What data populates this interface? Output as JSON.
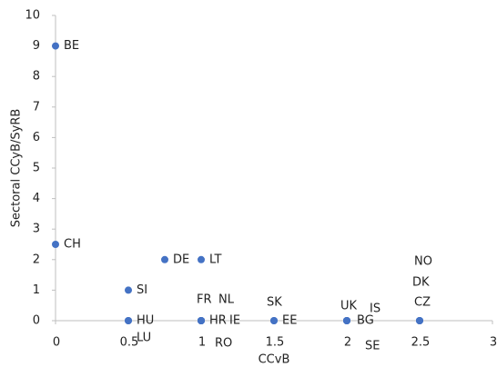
{
  "chart_data": {
    "type": "scatter",
    "x_label": "CCvB",
    "y_label": "Sectoral CCyB/SyRB",
    "color": "#4472c4",
    "labels": [
      "BE",
      "CH",
      "DE",
      "LT",
      "SI",
      "HU",
      "LU",
      "FR",
      "NL",
      "HR",
      "IE",
      "RO",
      "SK",
      "EE",
      "UK",
      "BG",
      "IS",
      "SE",
      "NO",
      "DK",
      "CZ"
    ],
    "x": [
      0,
      0,
      0.75,
      1,
      0.5,
      0.5,
      0.5,
      1,
      1,
      1,
      1,
      1,
      1.5,
      1.5,
      2,
      2,
      2,
      2,
      2.5,
      2.5,
      2.5
    ],
    "y": [
      9,
      2.5,
      2,
      2,
      1,
      0,
      0,
      0,
      0,
      0,
      0,
      0,
      0,
      0,
      0,
      0,
      0,
      0,
      0,
      0,
      0
    ],
    "xlim": [
      0,
      3
    ],
    "xticks": [
      0,
      0.5,
      1,
      1.5,
      2,
      2.5,
      3
    ],
    "ylim": [
      0,
      10
    ],
    "yticks": [
      0,
      1,
      2,
      3,
      4,
      5,
      6,
      7,
      8,
      9,
      10
    ]
  }
}
